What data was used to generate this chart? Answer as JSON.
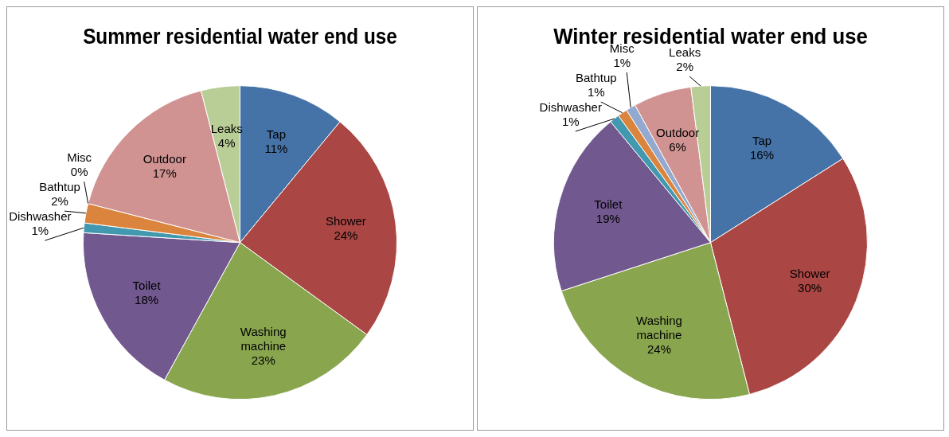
{
  "chart_data": [
    {
      "type": "pie",
      "title": "Summer residential water end use",
      "categories": [
        "Tap",
        "Shower",
        "Washing machine",
        "Toilet",
        "Dishwasher",
        "Bathtup",
        "Misc",
        "Outdoor",
        "Leaks"
      ],
      "values": [
        11,
        24,
        23,
        18,
        1,
        2,
        0,
        17,
        4
      ],
      "value_labels": [
        "11%",
        "24%",
        "23%",
        "18%",
        "1%",
        "2%",
        "0%",
        "17%",
        "4%"
      ],
      "colors": [
        "#4572a7",
        "#aa4643",
        "#89a54e",
        "#71588f",
        "#4198af",
        "#db843d",
        "#93a9cf",
        "#d19392",
        "#b9cd96"
      ],
      "legend": false
    },
    {
      "type": "pie",
      "title": "Winter residential water end use",
      "categories": [
        "Tap",
        "Shower",
        "Washing machine",
        "Toilet",
        "Dishwasher",
        "Bathtup",
        "Misc",
        "Outdoor",
        "Leaks"
      ],
      "values": [
        16,
        30,
        24,
        19,
        1,
        1,
        1,
        6,
        2
      ],
      "value_labels": [
        "16%",
        "30%",
        "24%",
        "19%",
        "1%",
        "1%",
        "1%",
        "6%",
        "2%"
      ],
      "colors": [
        "#4572a7",
        "#aa4643",
        "#89a54e",
        "#71588f",
        "#4198af",
        "#db843d",
        "#93a9cf",
        "#d19392",
        "#b9cd96"
      ],
      "legend": false
    }
  ]
}
